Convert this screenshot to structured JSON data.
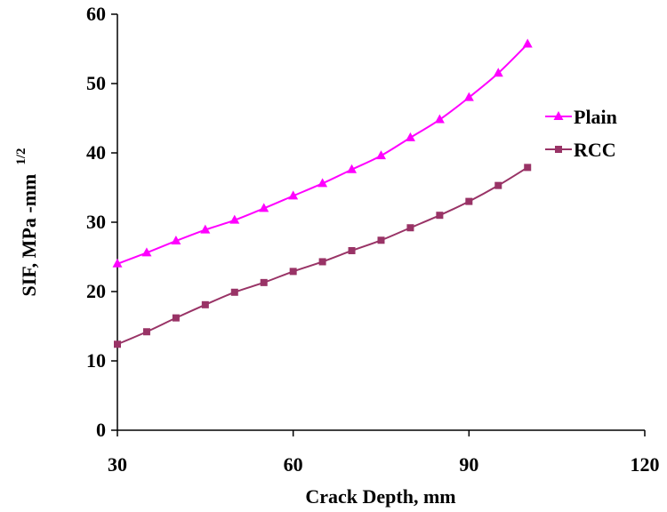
{
  "chart_data": {
    "type": "line",
    "xlabel": "Crack Depth, mm",
    "ylabel": "SIF, MPa -mm",
    "ylabel_sup": "1/2",
    "xlim": [
      30,
      120
    ],
    "ylim": [
      0,
      60
    ],
    "xticks": [
      30,
      60,
      90,
      120
    ],
    "yticks": [
      0,
      10,
      20,
      30,
      40,
      50,
      60
    ],
    "xtick_labels": [
      "30",
      "60",
      "90",
      "120"
    ],
    "ytick_labels": [
      "0",
      "10",
      "20",
      "30",
      "40",
      "50",
      "60"
    ],
    "grid": false,
    "legend_position": "right",
    "x": [
      30,
      35,
      40,
      45,
      50,
      55,
      60,
      65,
      70,
      75,
      80,
      85,
      90,
      95,
      100
    ],
    "series": [
      {
        "name": "Plain",
        "color": "#ff00ff",
        "marker": "triangle",
        "values": [
          24.0,
          25.6,
          27.3,
          28.9,
          30.3,
          32.0,
          33.8,
          35.6,
          37.6,
          39.6,
          42.2,
          44.8,
          48.0,
          51.5,
          55.7
        ]
      },
      {
        "name": "RCC",
        "color": "#993366",
        "marker": "square",
        "values": [
          12.4,
          14.2,
          16.2,
          18.1,
          19.9,
          21.3,
          22.9,
          24.3,
          25.9,
          27.4,
          29.2,
          31.0,
          33.0,
          35.3,
          37.9
        ]
      }
    ]
  }
}
